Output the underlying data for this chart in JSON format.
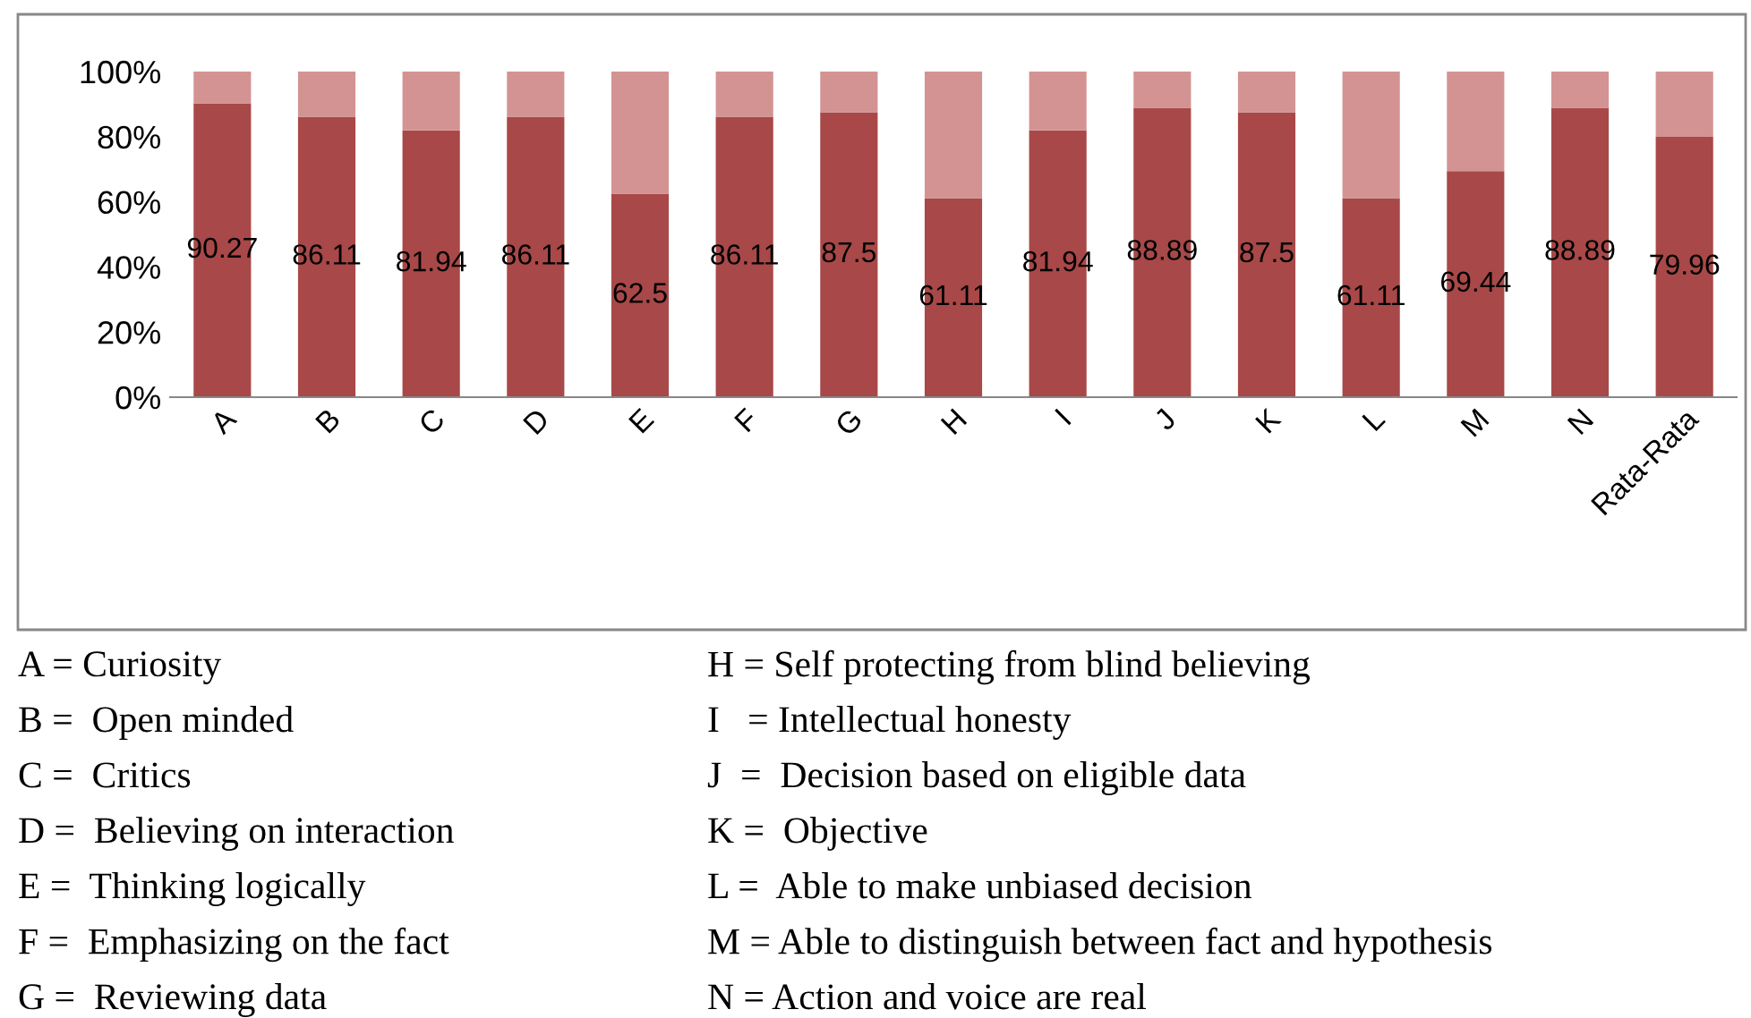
{
  "chart_data": {
    "type": "bar",
    "stacked": true,
    "categories": [
      "A",
      "B",
      "C",
      "D",
      "E",
      "F",
      "G",
      "H",
      "I",
      "J",
      "K",
      "L",
      "M",
      "N",
      "Rata-Rata"
    ],
    "series": [
      {
        "color": "#a84848",
        "values": [
          90.27,
          86.11,
          81.94,
          86.11,
          62.5,
          86.11,
          87.5,
          61.11,
          81.94,
          88.89,
          87.5,
          61.11,
          69.44,
          88.89,
          79.96
        ],
        "value_labels": [
          "90.27",
          "86.11",
          "81.94",
          "86.11",
          "62.5",
          "86.11",
          "87.5",
          "61.11",
          "81.94",
          "88.89",
          "87.5",
          "61.11",
          "69.44",
          "88.89",
          "79.96"
        ]
      },
      {
        "color": "#d49393",
        "values": [
          9.73,
          13.89,
          18.06,
          13.89,
          37.5,
          13.89,
          12.5,
          38.89,
          18.06,
          11.11,
          12.5,
          38.89,
          30.56,
          11.11,
          20.04
        ]
      }
    ],
    "ylim": [
      0,
      100
    ],
    "yticks": [
      {
        "value": 0,
        "label": "0%"
      },
      {
        "value": 20,
        "label": "20%"
      },
      {
        "value": 40,
        "label": "40%"
      },
      {
        "value": 60,
        "label": "60%"
      },
      {
        "value": 80,
        "label": "80%"
      },
      {
        "value": 100,
        "label": "100%"
      }
    ],
    "grid": false,
    "legend": false,
    "annotations": [
      "A = Curiosity",
      "B =  Open minded",
      "C =  Critics",
      "D =  Believing on interaction",
      "E =  Thinking logically",
      "F =  Emphasizing on the fact",
      "G =  Reviewing data",
      "H = Self protecting from blind believing",
      "I   = Intellectual honesty",
      "J  =  Decision based on eligible data",
      "K =  Objective",
      "L =  Able to make unbiased decision",
      "M = Able to distinguish between fact and hypothesis",
      "N = Action and voice are real"
    ]
  }
}
